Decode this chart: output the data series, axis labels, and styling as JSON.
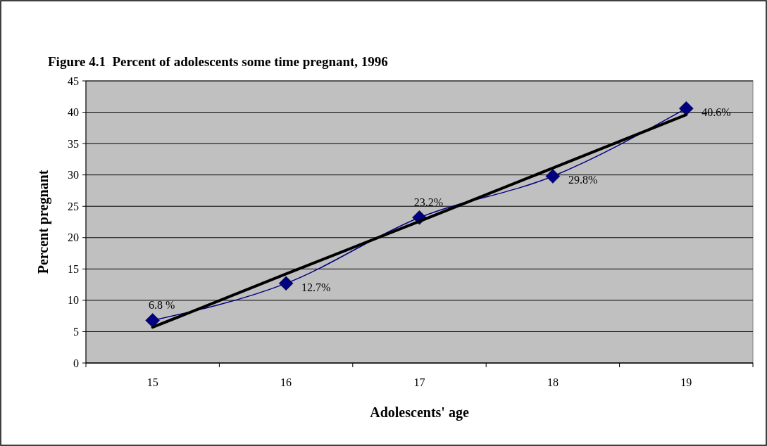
{
  "chart_data": {
    "type": "line",
    "title": "Figure 4.1  Percent of adolescents some time pregnant, 1996",
    "xlabel": "Adolescents' age",
    "ylabel": "Percent pregnant",
    "categories": [
      "15",
      "16",
      "17",
      "18",
      "19"
    ],
    "series": [
      {
        "color": "#000080",
        "values": [
          6.8,
          12.7,
          23.2,
          29.8,
          40.6
        ],
        "marker": "diamond",
        "value_labels": [
          "6.8 %",
          "12.7%",
          "23.2%",
          "29.8%",
          "40.6%"
        ]
      },
      {
        "type": "line",
        "color": "#000000",
        "values": [
          5.7,
          14.2,
          22.6,
          31.1,
          39.6
        ],
        "marker": "none"
      }
    ],
    "ylim": [
      0,
      45
    ],
    "yticks": [
      0,
      5,
      10,
      15,
      20,
      25,
      30,
      35,
      40,
      45
    ],
    "grid": "y"
  }
}
